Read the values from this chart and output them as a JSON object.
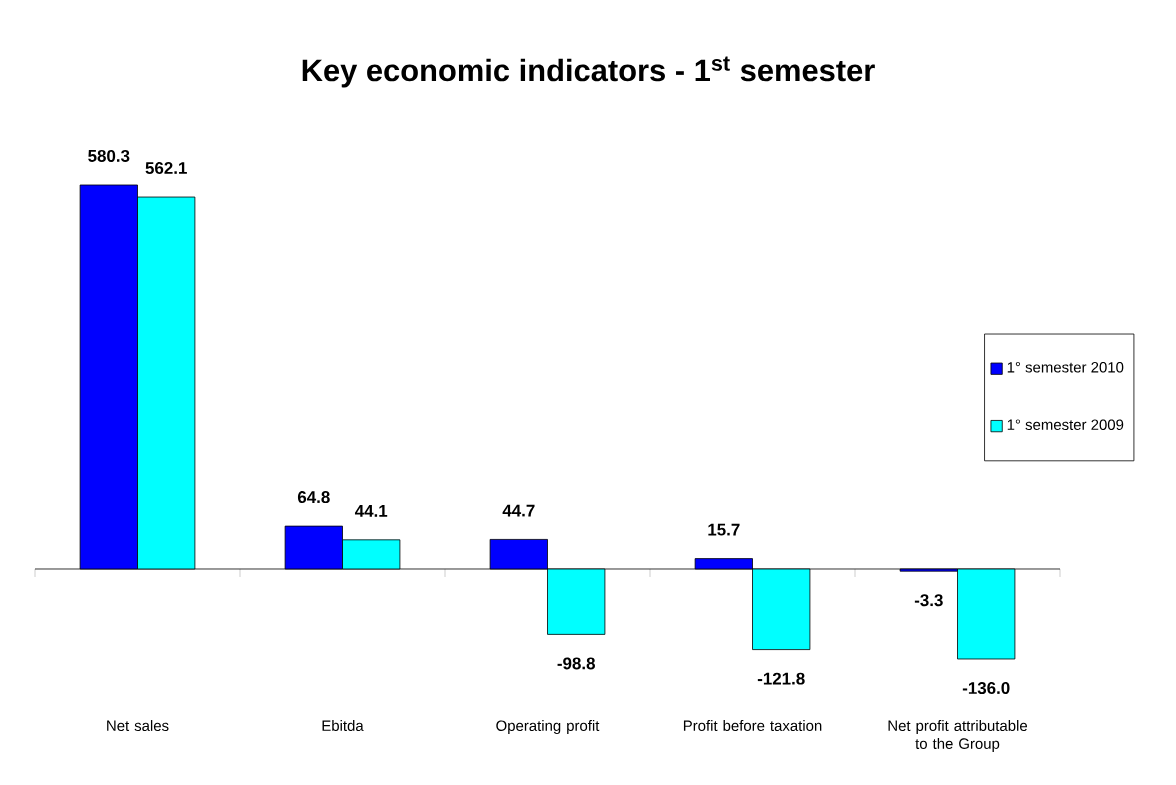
{
  "chart_data": {
    "type": "bar",
    "title": "Key economic indicators - 1$^{st}$ semester",
    "categories": [
      "Net sales",
      "Ebitda",
      "Operating profit",
      "Profit before taxation",
      "Net profit attributable to the Group"
    ],
    "series": [
      {
        "name": "1° semester 2010",
        "color": "#0000ff",
        "values": [
          580.3,
          64.8,
          44.7,
          15.7,
          -3.3
        ],
        "value_labels": [
          "580.3",
          "64.8",
          "44.7",
          "15.7",
          "-3.3"
        ]
      },
      {
        "name": "1° semester 2009",
        "color": "#00ffff",
        "values": [
          562.1,
          44.1,
          -98.8,
          -121.8,
          -136.0
        ],
        "value_labels": [
          "562.1",
          "44.1",
          "-98.8",
          "-121.8",
          "-136.0"
        ]
      }
    ],
    "legend": "right"
  }
}
